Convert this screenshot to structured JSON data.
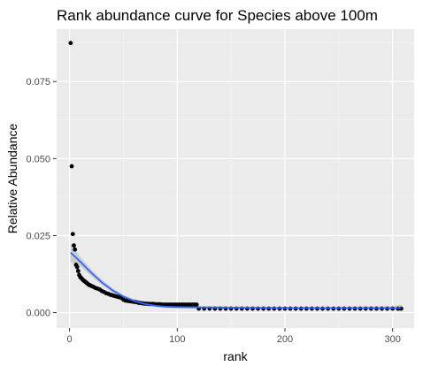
{
  "chart_data": {
    "type": "scatter",
    "title": "Rank abundance curve for Species above 100m",
    "xlabel": "rank",
    "ylabel": "Relative Abundance",
    "xlim": [
      -12,
      320
    ],
    "ylim": [
      -0.005,
      0.092
    ],
    "x_ticks": [
      0,
      100,
      200,
      300
    ],
    "x_tick_labels": [
      "0",
      "100",
      "200",
      "300"
    ],
    "y_ticks": [
      0.0,
      0.025,
      0.05,
      0.075
    ],
    "y_tick_labels": [
      "0.000",
      "0.025",
      "0.050",
      "0.075"
    ],
    "grid": true,
    "legend": "none",
    "colors": {
      "panel": "#ebebeb",
      "grid_major": "#ffffff",
      "points": "#000000",
      "smooth_line": "#3366ff",
      "confidence_band": "#b3b3b3"
    },
    "series": [
      {
        "type": "points",
        "x": [
          1,
          2,
          3,
          4,
          5,
          6,
          7,
          8,
          9,
          10,
          11,
          12,
          13,
          14,
          15,
          16,
          17,
          18,
          19,
          20,
          22,
          24,
          26,
          28,
          30,
          32,
          34,
          36,
          38,
          40,
          42,
          44,
          46,
          48,
          50,
          52,
          54,
          56,
          58,
          60,
          62,
          64,
          66,
          68,
          70,
          72,
          74,
          76,
          78,
          80,
          82,
          84,
          86,
          88,
          90,
          92,
          94,
          96,
          98,
          100,
          102,
          104,
          106,
          108,
          110,
          112,
          114,
          116,
          118,
          120,
          125,
          130,
          135,
          140,
          145,
          150,
          155,
          160,
          165,
          170,
          175,
          180,
          185,
          190,
          195,
          200,
          205,
          210,
          215,
          220,
          225,
          230,
          235,
          240,
          245,
          250,
          255,
          260,
          265,
          270,
          275,
          280,
          285,
          290,
          295,
          300,
          305,
          308
        ],
        "y": [
          0.0875,
          0.0475,
          0.0255,
          0.0218,
          0.0205,
          0.0155,
          0.0148,
          0.0135,
          0.0122,
          0.0115,
          0.0112,
          0.0108,
          0.0104,
          0.0102,
          0.0099,
          0.0096,
          0.0093,
          0.009,
          0.0089,
          0.0087,
          0.0084,
          0.008,
          0.0078,
          0.0075,
          0.007,
          0.0067,
          0.0063,
          0.0061,
          0.0058,
          0.0056,
          0.0054,
          0.0052,
          0.005,
          0.0048,
          0.0042,
          0.0039,
          0.0038,
          0.0037,
          0.0036,
          0.0035,
          0.0034,
          0.0032,
          0.0031,
          0.003,
          0.0029,
          0.0029,
          0.0028,
          0.0028,
          0.0028,
          0.0027,
          0.0027,
          0.0027,
          0.0026,
          0.0026,
          0.0026,
          0.0026,
          0.0026,
          0.0026,
          0.0026,
          0.0026,
          0.0026,
          0.0026,
          0.0026,
          0.0026,
          0.0026,
          0.0026,
          0.0026,
          0.0026,
          0.0026,
          0.0013,
          0.0013,
          0.0013,
          0.0013,
          0.0013,
          0.0013,
          0.0013,
          0.0013,
          0.0013,
          0.0013,
          0.0013,
          0.0013,
          0.0013,
          0.0013,
          0.0013,
          0.0013,
          0.0013,
          0.0013,
          0.0013,
          0.0013,
          0.0013,
          0.0013,
          0.0013,
          0.0013,
          0.0013,
          0.0013,
          0.0013,
          0.0013,
          0.0013,
          0.0013,
          0.0013,
          0.0013,
          0.0013,
          0.0013,
          0.0013,
          0.0013,
          0.0013,
          0.0013,
          0.0013
        ]
      },
      {
        "type": "smooth",
        "x": [
          1,
          10,
          20,
          30,
          40,
          50,
          60,
          70,
          80,
          90,
          100,
          120,
          150,
          200,
          250,
          300,
          308
        ],
        "y": [
          0.0195,
          0.0165,
          0.013,
          0.0098,
          0.0072,
          0.0052,
          0.0038,
          0.0028,
          0.0022,
          0.0019,
          0.0018,
          0.0017,
          0.0016,
          0.0015,
          0.0015,
          0.0015,
          0.0015
        ],
        "band_upper": [
          0.0225,
          0.018,
          0.0141,
          0.0107,
          0.0079,
          0.0058,
          0.0043,
          0.0032,
          0.0026,
          0.0023,
          0.0022,
          0.0021,
          0.002,
          0.0019,
          0.0019,
          0.0021,
          0.0026
        ],
        "band_lower": [
          0.0165,
          0.015,
          0.0119,
          0.0089,
          0.0065,
          0.0046,
          0.0033,
          0.0024,
          0.0018,
          0.0015,
          0.0014,
          0.0013,
          0.0012,
          0.0011,
          0.0011,
          0.0009,
          0.0004
        ]
      }
    ]
  }
}
